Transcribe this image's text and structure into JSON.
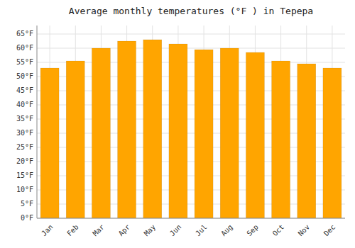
{
  "chart_data": {
    "type": "bar",
    "title": "Average monthly temperatures (°F ) in Tepepa",
    "categories": [
      "Jan",
      "Feb",
      "Mar",
      "Apr",
      "May",
      "Jun",
      "Jul",
      "Aug",
      "Sep",
      "Oct",
      "Nov",
      "Dec"
    ],
    "values": [
      53,
      55.5,
      60,
      62.5,
      63,
      61.5,
      59.5,
      60,
      58.5,
      55.5,
      54.5,
      53
    ],
    "color": "#FFA500",
    "ylim": [
      0,
      68
    ],
    "yticks": [
      {
        "value": 0,
        "label": "0°F"
      },
      {
        "value": 5,
        "label": "5°F"
      },
      {
        "value": 10,
        "label": "10°F"
      },
      {
        "value": 15,
        "label": "15°F"
      },
      {
        "value": 20,
        "label": "20°F"
      },
      {
        "value": 25,
        "label": "25°F"
      },
      {
        "value": 30,
        "label": "30°F"
      },
      {
        "value": 35,
        "label": "35°F"
      },
      {
        "value": 40,
        "label": "40°F"
      },
      {
        "value": 45,
        "label": "45°F"
      },
      {
        "value": 50,
        "label": "50°F"
      },
      {
        "value": 55,
        "label": "55°F"
      },
      {
        "value": 60,
        "label": "60°F"
      },
      {
        "value": 65,
        "label": "65°F"
      }
    ],
    "grid": true
  }
}
